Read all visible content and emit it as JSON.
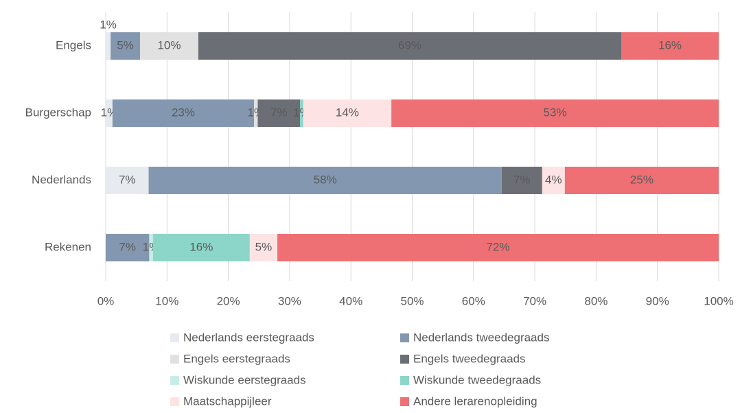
{
  "chart_data": {
    "type": "stacked-barh",
    "categories": [
      "Engels",
      "Burgerschap",
      "Nederlands",
      "Rekenen"
    ],
    "series": [
      {
        "name": "Nederlands eerstegraads",
        "color": "#e7ebf0",
        "values": [
          0.8,
          1.1,
          7.0,
          null
        ],
        "value_labels": [
          "1%",
          "1%",
          "7%",
          null
        ]
      },
      {
        "name": "Nederlands tweedegraads",
        "color": "#8497b0",
        "values": [
          4.8,
          23.1,
          57.6,
          7.1
        ],
        "value_labels": [
          "5%",
          "23%",
          "58%",
          "7%"
        ]
      },
      {
        "name": "Engels eerstegraads",
        "color": "#e1e1e1",
        "values": [
          9.5,
          0.6,
          null,
          null
        ],
        "value_labels": [
          "10%",
          "1%",
          null,
          null
        ]
      },
      {
        "name": "Engels tweedegraads",
        "color": "#6b6f75",
        "values": [
          69.0,
          6.9,
          6.6,
          null
        ],
        "value_labels": [
          "69%",
          "7%",
          "7%",
          null
        ]
      },
      {
        "name": "Wiskunde eerstegraads",
        "color": "#c8ede6",
        "values": [
          null,
          null,
          null,
          0.6
        ],
        "value_labels": [
          null,
          null,
          null,
          "1%"
        ]
      },
      {
        "name": "Wiskunde tweedegraads",
        "color": "#8cd5c9",
        "values": [
          null,
          0.5,
          null,
          15.8
        ],
        "value_labels": [
          null,
          "1%",
          null,
          "16%"
        ]
      },
      {
        "name": "Maatschappijleer",
        "color": "#fde3e3",
        "values": [
          null,
          14.4,
          3.7,
          4.5
        ],
        "value_labels": [
          null,
          "14%",
          "4%",
          "5%"
        ]
      },
      {
        "name": "Andere lerarenopleiding",
        "color": "#ee7074",
        "values": [
          15.9,
          53.4,
          25.1,
          72.0
        ],
        "value_labels": [
          "16%",
          "53%",
          "25%",
          "72%"
        ]
      }
    ],
    "xlim": [
      0,
      100
    ],
    "xticks": [
      {
        "value": 0,
        "label": "0%"
      },
      {
        "value": 10,
        "label": "10%"
      },
      {
        "value": 20,
        "label": "20%"
      },
      {
        "value": 30,
        "label": "30%"
      },
      {
        "value": 40,
        "label": "40%"
      },
      {
        "value": 50,
        "label": "50%"
      },
      {
        "value": 60,
        "label": "60%"
      },
      {
        "value": 70,
        "label": "70%"
      },
      {
        "value": 80,
        "label": "80%"
      },
      {
        "value": 90,
        "label": "90%"
      },
      {
        "value": 100,
        "label": "100%"
      }
    ],
    "grid": true,
    "legend": "bottom"
  }
}
